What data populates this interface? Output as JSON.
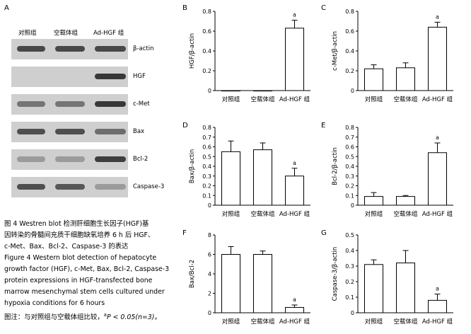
{
  "panel_labels": [
    "A",
    "B",
    "C",
    "D",
    "E",
    "F",
    "G"
  ],
  "blot": {
    "lanes": [
      "对照组",
      "空载体组",
      "Ad-HGF 组"
    ],
    "rows": [
      {
        "label": "β-actin",
        "intensity": [
          0.85,
          0.85,
          0.85
        ]
      },
      {
        "label": "HGF",
        "intensity": [
          0.0,
          0.0,
          0.95
        ]
      },
      {
        "label": "c-Met",
        "intensity": [
          0.55,
          0.55,
          0.95
        ]
      },
      {
        "label": "Bax",
        "intensity": [
          0.8,
          0.8,
          0.6
        ]
      },
      {
        "label": "Bcl-2",
        "intensity": [
          0.3,
          0.3,
          0.9
        ]
      },
      {
        "label": "Caspase-3",
        "intensity": [
          0.8,
          0.75,
          0.3
        ]
      }
    ]
  },
  "caption": {
    "lines": [
      "图 4   Westren blot 检测肝细胞生长因子(HGF)基",
      "因转染的骨髓间充质干细胞缺氧培养 6 h 后 HGF、",
      "c-Met、Bax、Bcl-2、Caspase-3 的表达",
      "Figure 4   Western blot detection of hepatocyte",
      "growth factor (HGF), c-Met, Bax, Bcl-2, Caspase-3",
      "protein expressions in HGF-transfected bone",
      "marrow mesenchymal stem cells cultured under",
      "hypoxia conditions for 6 hours"
    ],
    "note_prefix": "图注：与对照组与空载体组比较，",
    "note_sup": "a",
    "note_suffix": "P < 0.05(n=3)。"
  },
  "chart_data": [
    {
      "panel": "B",
      "type": "bar",
      "ylabel": "HGF/β-actin",
      "categories": [
        "对照组",
        "空载体组",
        "Ad-HGF 组"
      ],
      "values": [
        0.0,
        0.0,
        0.63
      ],
      "errors": [
        0.0,
        0.0,
        0.08
      ],
      "yticks": [
        "0",
        "0.2",
        "0.4",
        "0.6",
        "0.8"
      ],
      "ylim": [
        0,
        0.8
      ],
      "annotations": [
        "",
        "",
        "a"
      ]
    },
    {
      "panel": "C",
      "type": "bar",
      "ylabel": "c-Met/β-actin",
      "categories": [
        "对照组",
        "空载体组",
        "Ad-HGF 组"
      ],
      "values": [
        0.22,
        0.23,
        0.64
      ],
      "errors": [
        0.04,
        0.05,
        0.05
      ],
      "yticks": [
        "0",
        "0.2",
        "0.4",
        "0.6",
        "0.8"
      ],
      "ylim": [
        0,
        0.8
      ],
      "annotations": [
        "",
        "",
        "a"
      ]
    },
    {
      "panel": "D",
      "type": "bar",
      "ylabel": "Bax/β-actin",
      "categories": [
        "对照组",
        "空载体组",
        "Ad-HGF 组"
      ],
      "values": [
        0.55,
        0.57,
        0.3
      ],
      "errors": [
        0.11,
        0.07,
        0.08
      ],
      "yticks": [
        "0",
        "0.1",
        "0.2",
        "0.3",
        "0.4",
        "0.5",
        "0.6",
        "0.7",
        "0.8"
      ],
      "ylim": [
        0,
        0.8
      ],
      "annotations": [
        "",
        "",
        "a"
      ]
    },
    {
      "panel": "E",
      "type": "bar",
      "ylabel": "Bcl-2/β-actin",
      "categories": [
        "对照组",
        "空载体组",
        "Ad-HGF 组"
      ],
      "values": [
        0.09,
        0.09,
        0.54
      ],
      "errors": [
        0.04,
        0.01,
        0.1
      ],
      "yticks": [
        "0",
        "0.1",
        "0.2",
        "0.3",
        "0.4",
        "0.5",
        "0.6",
        "0.7",
        "0.8"
      ],
      "ylim": [
        0,
        0.8
      ],
      "annotations": [
        "",
        "",
        "a"
      ]
    },
    {
      "panel": "F",
      "type": "bar",
      "ylabel": "Bax/Bcl-2",
      "categories": [
        "对照组",
        "空载体组",
        "Ad-HGF 组"
      ],
      "values": [
        6.0,
        6.0,
        0.55
      ],
      "errors": [
        0.8,
        0.35,
        0.25
      ],
      "yticks": [
        "0",
        "2",
        "4",
        "6",
        "8"
      ],
      "ylim": [
        0,
        8
      ],
      "annotations": [
        "",
        "",
        "a"
      ]
    },
    {
      "panel": "G",
      "type": "bar",
      "ylabel": "Caspase-3/β-actin",
      "categories": [
        "对照组",
        "空载体组",
        "Ad-HGF 组"
      ],
      "values": [
        0.31,
        0.32,
        0.08
      ],
      "errors": [
        0.03,
        0.08,
        0.04
      ],
      "yticks": [
        "0",
        "0.1",
        "0.2",
        "0.3",
        "0.4",
        "0.5"
      ],
      "ylim": [
        0,
        0.5
      ],
      "annotations": [
        "",
        "",
        "a"
      ]
    }
  ]
}
